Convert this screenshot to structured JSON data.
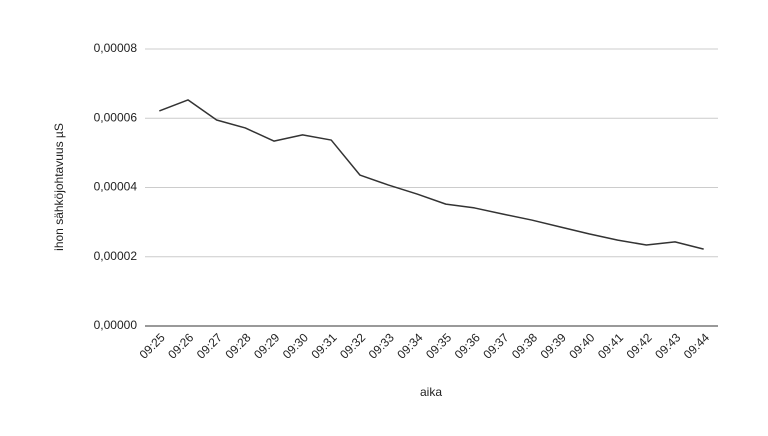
{
  "chart_data": {
    "type": "line",
    "x_label": "aika",
    "y_label": "ihon sähköjohtavuus µS",
    "categories": [
      "09:25",
      "09:26",
      "09:27",
      "09:28",
      "09:29",
      "09:30",
      "09:31",
      "09:32",
      "09:33",
      "09:34",
      "09:35",
      "09:36",
      "09:37",
      "09:38",
      "09:39",
      "09:40",
      "09:41",
      "09:42",
      "09:43",
      "09:44"
    ],
    "series": [
      {
        "color": "#333333",
        "values": [
          6.21e-05,
          6.53e-05,
          5.95e-05,
          5.72e-05,
          5.34e-05,
          5.52e-05,
          5.37e-05,
          4.36e-05,
          4.07e-05,
          3.81e-05,
          3.52e-05,
          3.41e-05,
          3.23e-05,
          3.06e-05,
          2.86e-05,
          2.66e-05,
          2.48e-05,
          2.34e-05,
          2.43e-05,
          2.22e-05
        ]
      }
    ],
    "ylim": [
      0,
      8e-05
    ],
    "yticks": [
      {
        "value": 0,
        "label": "0,00000"
      },
      {
        "value": 2e-05,
        "label": "0,00002"
      },
      {
        "value": 4e-05,
        "label": "0,00004"
      },
      {
        "value": 6e-05,
        "label": "0,00006"
      },
      {
        "value": 8e-05,
        "label": "0,00008"
      }
    ],
    "grid": true
  }
}
